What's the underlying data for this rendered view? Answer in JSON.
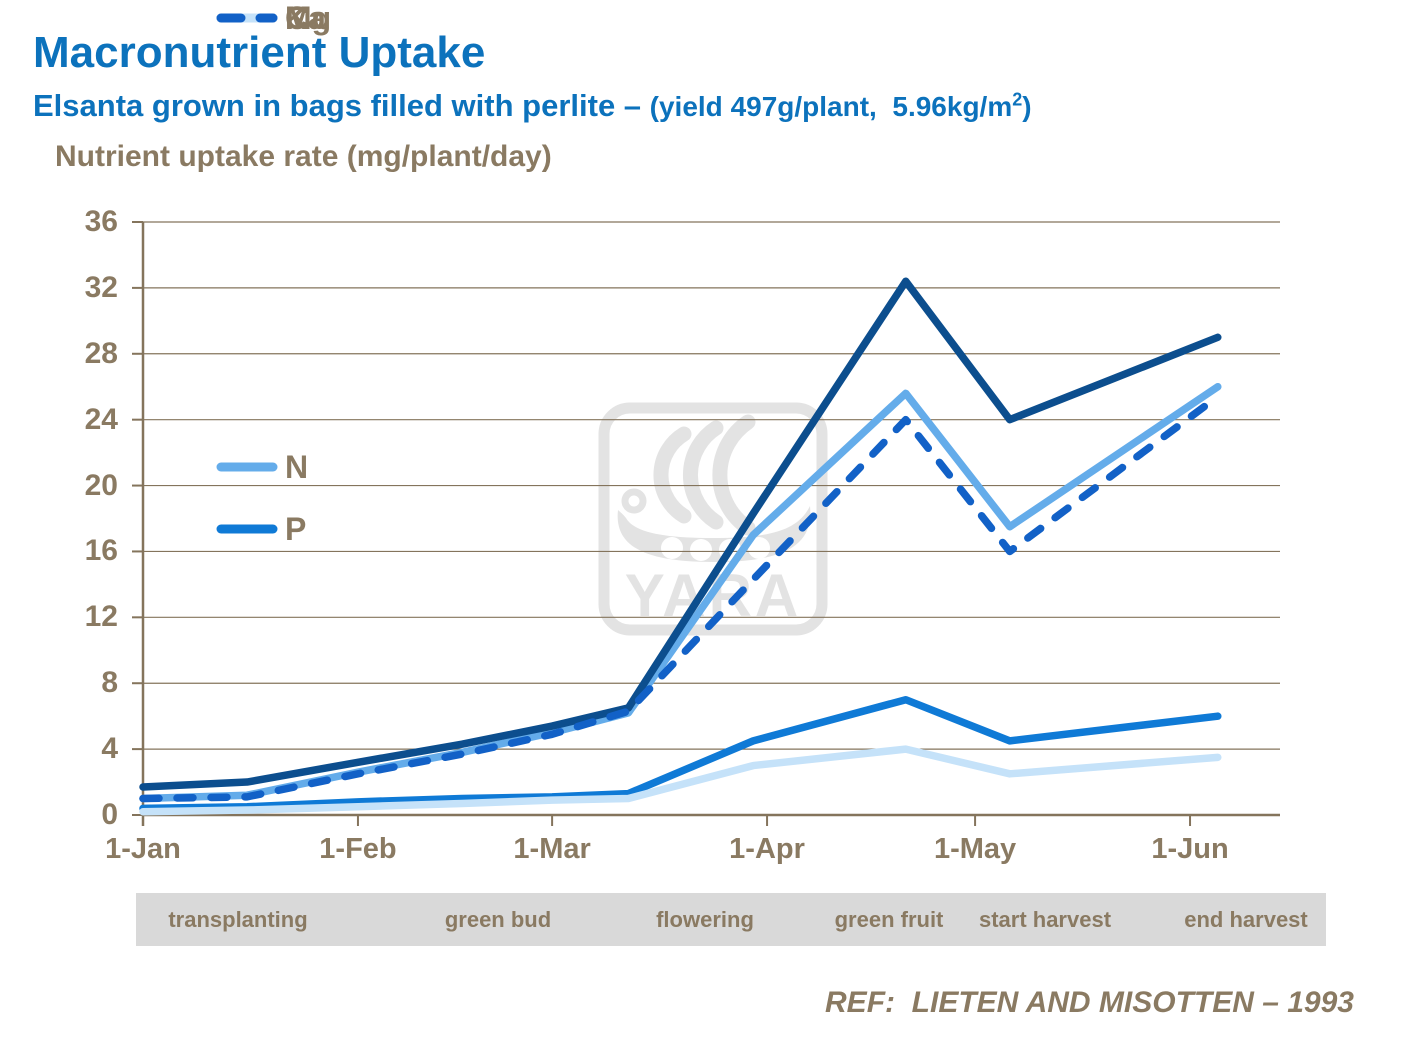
{
  "page": {
    "title": "Macronutrient Uptake",
    "subtitle_main": "Elsanta grown in bags filled with perlite – ",
    "subtitle_paren_pre": "(yield 497g/plant,  5.96kg/m",
    "subtitle_sup": "2",
    "subtitle_paren_post": ")",
    "reference": "REF:  LIETEN AND MISOTTEN – 1993",
    "watermark": "YARA"
  },
  "chart_data": {
    "type": "line",
    "title": "Nutrient uptake rate (mg/plant/day)",
    "x_axis": {
      "unit": "date (days from 1-Jan)",
      "tick_labels": [
        "1-Jan",
        "1-Feb",
        "1-Mar",
        "1-Apr",
        "1-May",
        "1-Jun"
      ],
      "tick_days": [
        0,
        31,
        59,
        90,
        120,
        151
      ],
      "range_days": [
        0,
        164
      ]
    },
    "y_axis": {
      "ticks": [
        36,
        32,
        28,
        24,
        20,
        16,
        12,
        8,
        4,
        0
      ],
      "range": [
        0,
        36
      ],
      "gridlines": true
    },
    "x_days": [
      0,
      15,
      31,
      46,
      59,
      70,
      88,
      110,
      125,
      155
    ],
    "x_dates_approx": [
      "1-Jan",
      "16-Jan",
      "1-Feb",
      "16-Feb",
      "1-Mar",
      "12-Mar",
      "29-Mar",
      "21-Apr",
      "6-May",
      "5-Jun"
    ],
    "series": [
      {
        "name": "N",
        "color": "#64ACEA",
        "style": "solid",
        "values": [
          1.0,
          1.2,
          2.6,
          3.8,
          5.0,
          6.2,
          17.0,
          25.6,
          17.5,
          26.0
        ]
      },
      {
        "name": "P",
        "color": "#0F7AD6",
        "style": "solid",
        "values": [
          0.4,
          0.5,
          0.8,
          1.0,
          1.1,
          1.3,
          4.5,
          7.0,
          4.5,
          6.0
        ]
      },
      {
        "name": "K",
        "color": "#0C4E8E",
        "style": "solid",
        "values": [
          1.7,
          2.0,
          3.2,
          4.3,
          5.4,
          6.5,
          18.3,
          32.4,
          24.0,
          29.0
        ]
      },
      {
        "name": "Mg",
        "color": "#C5E2F9",
        "style": "solid",
        "values": [
          0.2,
          0.3,
          0.5,
          0.7,
          0.9,
          1.0,
          3.0,
          4.0,
          2.5,
          3.5
        ]
      },
      {
        "name": "Ca",
        "color": "#1261C7",
        "style": "dashed",
        "values": [
          1.0,
          1.1,
          2.5,
          3.7,
          4.9,
          6.3,
          14.3,
          24.0,
          16.0,
          25.4
        ]
      }
    ],
    "legend_position": "inside-upper-left",
    "grid_color": "#84745c",
    "stages": [
      "transplanting",
      "green bud",
      "flowering",
      "green fruit",
      "start harvest",
      "end harvest"
    ]
  }
}
